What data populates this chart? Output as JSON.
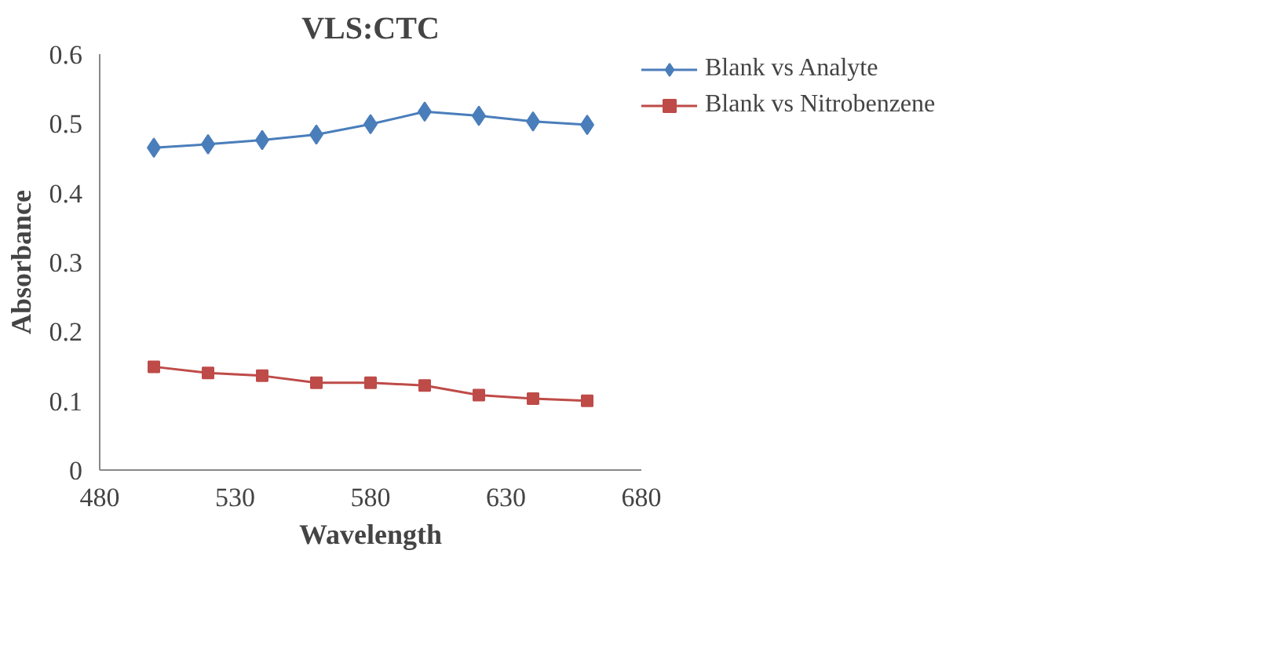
{
  "chart_data": {
    "type": "line",
    "title": "VLS:CTC",
    "xlabel": "Wavelength",
    "ylabel": "Absorbance",
    "x": [
      500,
      520,
      540,
      560,
      580,
      600,
      620,
      640,
      660
    ],
    "series": [
      {
        "name": "Blank vs Analyte",
        "color": "#4a7ebb",
        "marker": "diamond",
        "values": [
          0.465,
          0.47,
          0.476,
          0.484,
          0.499,
          0.517,
          0.511,
          0.503,
          0.498
        ]
      },
      {
        "name": "Blank vs Nitrobenzene",
        "color": "#be4b48",
        "marker": "square",
        "values": [
          0.149,
          0.14,
          0.136,
          0.126,
          0.126,
          0.122,
          0.108,
          0.103,
          0.1
        ]
      }
    ],
    "xlim": [
      480,
      680
    ],
    "xticks": [
      480,
      530,
      580,
      630,
      680
    ],
    "ylim": [
      0,
      0.6
    ],
    "yticks": [
      0,
      0.1,
      0.2,
      0.3,
      0.4,
      0.5,
      0.6
    ],
    "grid": false,
    "legend": "right",
    "line_style": "solid"
  }
}
